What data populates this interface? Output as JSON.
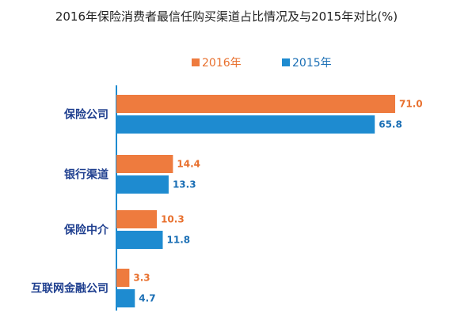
{
  "colors": {
    "orange": "#EE7B3E",
    "blue": "#1E8BD0",
    "axis": "#1E8BD0",
    "category_text": "#1F3F8F",
    "value_2016": "#E8702E",
    "value_2015": "#1B6FB5"
  },
  "chart_data": {
    "type": "bar",
    "orientation": "horizontal",
    "title": "2016年保险消费者最信任购买渠道占比情况及与2015年对比(%)",
    "categories": [
      "保险公司",
      "银行渠道",
      "保险中介",
      "互联网金融公司"
    ],
    "series": [
      {
        "name": "2016年",
        "values": [
          71.0,
          14.4,
          10.3,
          3.3
        ],
        "labels": [
          "71.0",
          "14.4",
          "10.3",
          "3.3"
        ]
      },
      {
        "name": "2015年",
        "values": [
          65.8,
          13.3,
          11.8,
          4.7
        ],
        "labels": [
          "65.8",
          "13.3",
          "11.8",
          "4.7"
        ]
      }
    ],
    "xlim": [
      0,
      71
    ],
    "legend_position": "top-center",
    "grid": false
  }
}
